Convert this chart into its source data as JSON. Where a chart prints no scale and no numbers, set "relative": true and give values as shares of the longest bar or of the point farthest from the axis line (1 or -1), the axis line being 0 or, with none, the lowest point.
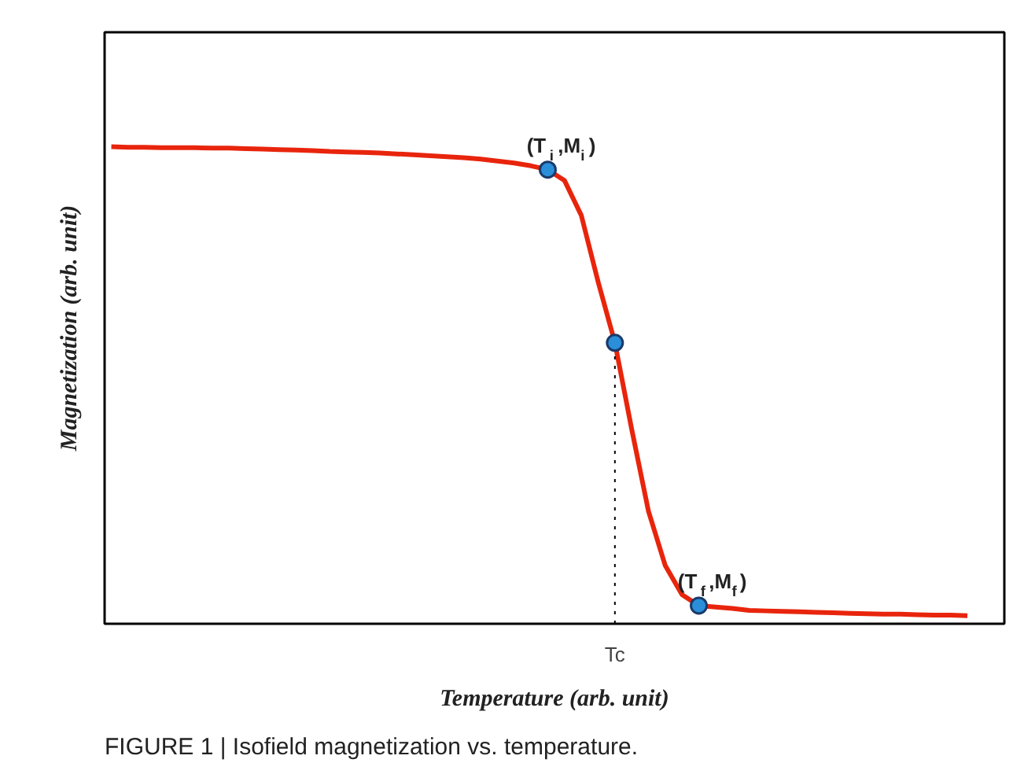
{
  "chart_data": {
    "type": "line",
    "relative": true,
    "xlabel": "Temperature (arb. unit)",
    "ylabel": "Magnetization (arb. unit)",
    "categories": [
      null,
      null,
      null,
      null,
      null,
      null,
      null,
      null,
      null,
      null,
      null,
      null,
      null,
      null,
      null,
      null,
      null,
      null,
      null,
      null,
      null,
      null,
      null,
      null,
      null,
      null,
      null,
      null,
      null,
      null,
      null,
      null,
      null,
      null,
      null,
      null,
      null,
      null,
      null,
      null,
      null,
      null,
      null,
      null,
      null,
      null,
      null,
      null,
      null,
      null,
      null,
      null
    ],
    "series": [
      {
        "color": "#e8250c",
        "values": [
          1.0,
          0.999,
          0.999,
          0.998,
          0.998,
          0.998,
          0.997,
          0.997,
          0.996,
          0.995,
          0.994,
          0.993,
          0.992,
          0.99,
          0.989,
          0.988,
          0.987,
          0.985,
          0.983,
          0.981,
          0.979,
          0.977,
          0.974,
          0.97,
          0.966,
          0.96,
          0.952,
          0.929,
          0.856,
          0.717,
          0.589,
          0.408,
          0.236,
          0.122,
          0.061,
          0.038,
          0.035,
          0.032,
          0.028,
          0.027,
          0.026,
          0.025,
          0.024,
          0.023,
          0.022,
          0.021,
          0.02,
          0.02,
          0.019,
          0.018,
          0.018,
          0.017
        ]
      }
    ],
    "annotations": [
      {
        "text": "Tc",
        "y": 0.589
      },
      {
        "text": "(T$_{i}$,M$_{i}$)",
        "y": 0.952
      },
      {
        "text": "(T$_{f}$,M$_{f}$)",
        "y": 0.038
      },
      "FIGURE 1 | Isofield magnetization vs. temperature."
    ]
  }
}
